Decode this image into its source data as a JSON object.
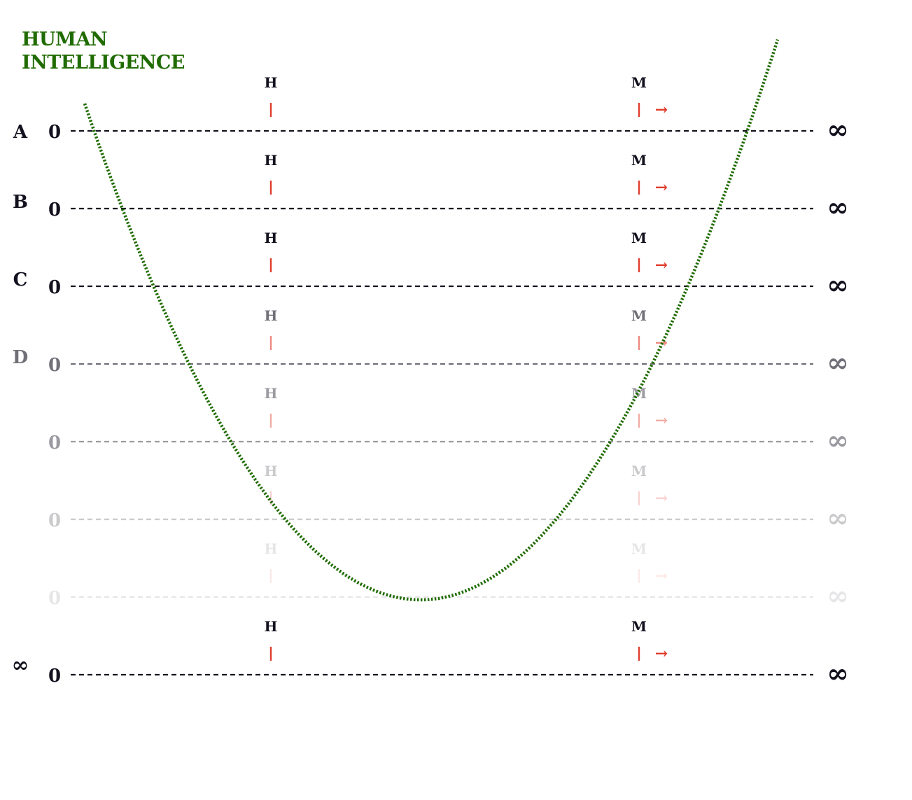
{
  "title": {
    "line1": "HUMAN",
    "line2": "INTELLIGENCE",
    "color": "#1f6b00"
  },
  "colors": {
    "ink": "#14111f",
    "curve": "#1f6b00",
    "tick": "#e03c2c"
  },
  "scale": {
    "left_end": "0",
    "right_end": "∞",
    "marker_h": "H",
    "marker_m": "M",
    "arrow": "→"
  },
  "rows": [
    {
      "label": "A",
      "opacity": 1.0
    },
    {
      "label": "B",
      "opacity": 1.0
    },
    {
      "label": "C",
      "opacity": 1.0
    },
    {
      "label": "D",
      "opacity": 0.6
    },
    {
      "label": "",
      "opacity": 0.42
    },
    {
      "label": "",
      "opacity": 0.22
    },
    {
      "label": "",
      "opacity": 0.1
    },
    {
      "label": "∞",
      "opacity": 1.0
    }
  ]
}
